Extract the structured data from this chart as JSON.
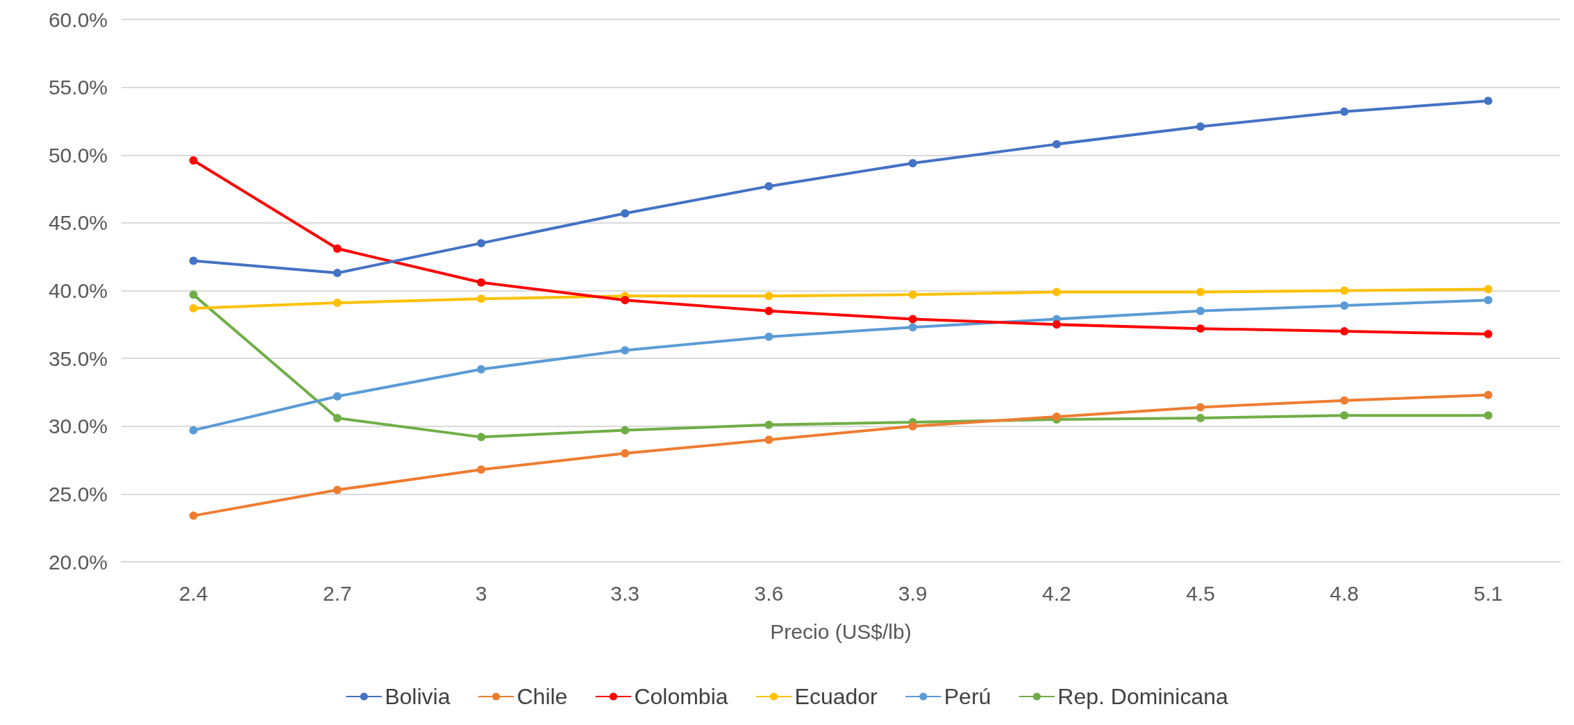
{
  "chart_data": {
    "type": "line",
    "xlabel": "Precio (US$/lb)",
    "categories": [
      "2.4",
      "2.7",
      "3",
      "3.3",
      "3.6",
      "3.9",
      "4.2",
      "4.5",
      "4.8",
      "5.1"
    ],
    "series": [
      {
        "name": "Bolivia",
        "color": "#4472c4",
        "values": [
          42.2,
          41.3,
          43.5,
          45.7,
          47.7,
          49.4,
          50.8,
          52.1,
          53.2,
          54.0
        ]
      },
      {
        "name": "Chile",
        "color": "#ed7d31",
        "values": [
          23.4,
          25.3,
          26.8,
          28.0,
          29.0,
          30.0,
          30.7,
          31.4,
          31.9,
          32.3
        ]
      },
      {
        "name": "Colombia",
        "color": "#ff0000",
        "values": [
          49.6,
          43.1,
          40.6,
          39.3,
          38.5,
          37.9,
          37.5,
          37.2,
          37.0,
          36.8
        ]
      },
      {
        "name": "Ecuador",
        "color": "#ffc000",
        "values": [
          38.7,
          39.1,
          39.4,
          39.6,
          39.6,
          39.7,
          39.9,
          39.9,
          40.0,
          40.1
        ]
      },
      {
        "name": "Perú",
        "color": "#5b9bd5",
        "values": [
          29.7,
          32.2,
          34.2,
          35.6,
          36.6,
          37.3,
          37.9,
          38.5,
          38.9,
          39.3
        ]
      },
      {
        "name": "Rep. Dominicana",
        "color": "#70ad47",
        "values": [
          39.7,
          30.6,
          29.2,
          29.7,
          30.1,
          30.3,
          30.5,
          30.6,
          30.8,
          30.8
        ]
      }
    ],
    "ylim": [
      20,
      60
    ],
    "yticks": [
      {
        "value": 20,
        "label": "20.0%"
      },
      {
        "value": 25,
        "label": "25.0%"
      },
      {
        "value": 30,
        "label": "30.0%"
      },
      {
        "value": 35,
        "label": "35.0%"
      },
      {
        "value": 40,
        "label": "40.0%"
      },
      {
        "value": 45,
        "label": "45.0%"
      },
      {
        "value": 50,
        "label": "50.0%"
      },
      {
        "value": 55,
        "label": "55.0%"
      },
      {
        "value": 60,
        "label": "60.0%"
      }
    ],
    "grid": "y",
    "legend": "bottom",
    "marker": "circle",
    "line_style": "solid"
  }
}
